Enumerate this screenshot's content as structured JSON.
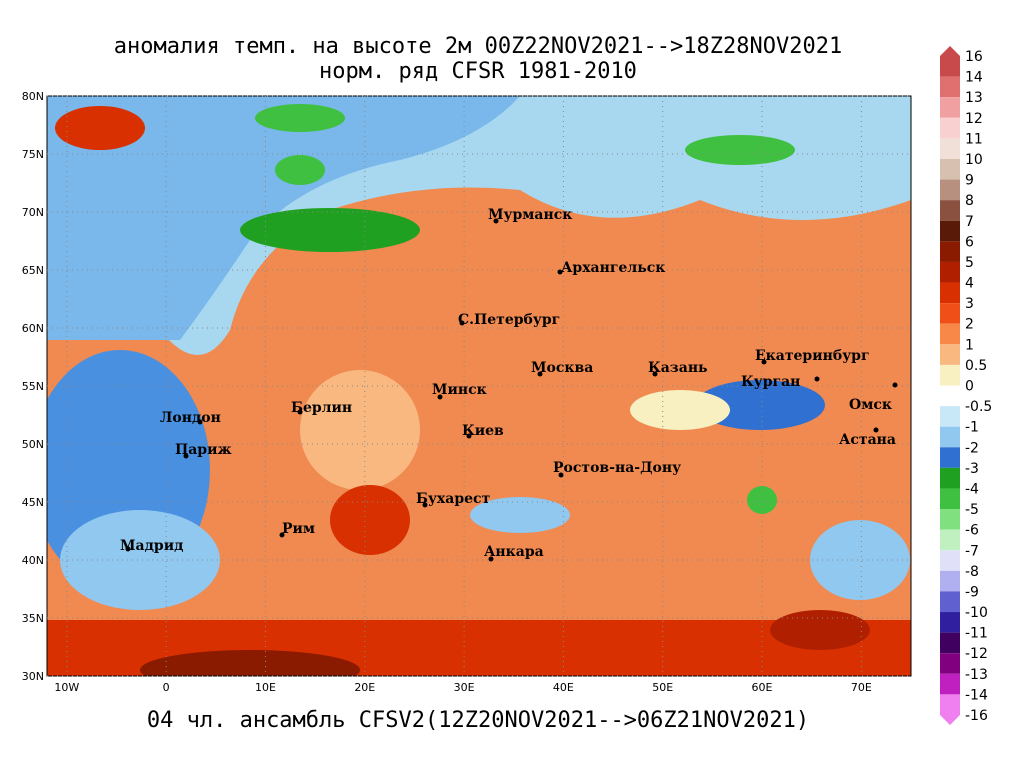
{
  "header": {
    "title_lines": [
      "аномалия темп. на высоте 2м 00Z22NOV2021-->18Z28NOV2021",
      "норм. ряд CFSR 1981-2010"
    ]
  },
  "map": {
    "lat_ticks": [
      {
        "value": 80,
        "label": "80N"
      },
      {
        "value": 75,
        "label": "75N"
      },
      {
        "value": 70,
        "label": "70N"
      },
      {
        "value": 65,
        "label": "65N"
      },
      {
        "value": 60,
        "label": "60N"
      },
      {
        "value": 55,
        "label": "55N"
      },
      {
        "value": 50,
        "label": "50N"
      },
      {
        "value": 45,
        "label": "45N"
      },
      {
        "value": 40,
        "label": "40N"
      },
      {
        "value": 35,
        "label": "35N"
      },
      {
        "value": 30,
        "label": "30N"
      }
    ],
    "lon_ticks": [
      {
        "value": -10,
        "label": "10W"
      },
      0,
      {
        "value": 10,
        "label": "10E"
      },
      {
        "value": 20,
        "label": "20E"
      },
      {
        "value": 30,
        "label": "30E"
      },
      {
        "value": 40,
        "label": "40E"
      },
      {
        "value": 50,
        "label": "50E"
      },
      {
        "value": 60,
        "label": "60E"
      },
      {
        "value": 70,
        "label": "70E"
      }
    ],
    "cities": [
      "Мурманск",
      "Архангельск",
      "С.Петербург",
      "Москва",
      "Казань",
      "Екатеринбург",
      "Курган",
      "Омск",
      "Астана",
      "Минск",
      "Берлин",
      "Лондон",
      "Париж",
      "Киев",
      "Ростов-на-Дону",
      "Бухарест",
      "Рим",
      "Мадрид",
      "Анкара"
    ]
  },
  "colorbar": {
    "labels": [
      16,
      14,
      13,
      12,
      11,
      10,
      9,
      8,
      7,
      6,
      5,
      4,
      3,
      2,
      1,
      0.5,
      0,
      -0.5,
      -1,
      -2,
      -3,
      -4,
      -5,
      -6,
      -7,
      -8,
      -9,
      -10,
      -11,
      -12,
      -13,
      -14,
      -16
    ],
    "colors": [
      "#c84a4a",
      "#e07070",
      "#f0a0a0",
      "#f8d0d0",
      "#f0e0d8",
      "#d8c0b0",
      "#b89080",
      "#8a5040",
      "#5a1a08",
      "#8a1a00",
      "#b02000",
      "#d83000",
      "#f05018",
      "#f88848",
      "#f8b880",
      "#f8f0c0",
      "#ffffff",
      "#c8e8f8",
      "#90c8f0",
      "#3070d0",
      "#20a020",
      "#40c040",
      "#80e080",
      "#c0f0c0",
      "#e0e0f8",
      "#b0b0f0",
      "#6060d0",
      "#3020a0",
      "#400060",
      "#800080",
      "#c020c0",
      "#f080f0"
    ]
  },
  "footer": {
    "caption": "04 чл. ансамбль CFSV2(12Z20NOV2021-->06Z21NOV2021)"
  }
}
